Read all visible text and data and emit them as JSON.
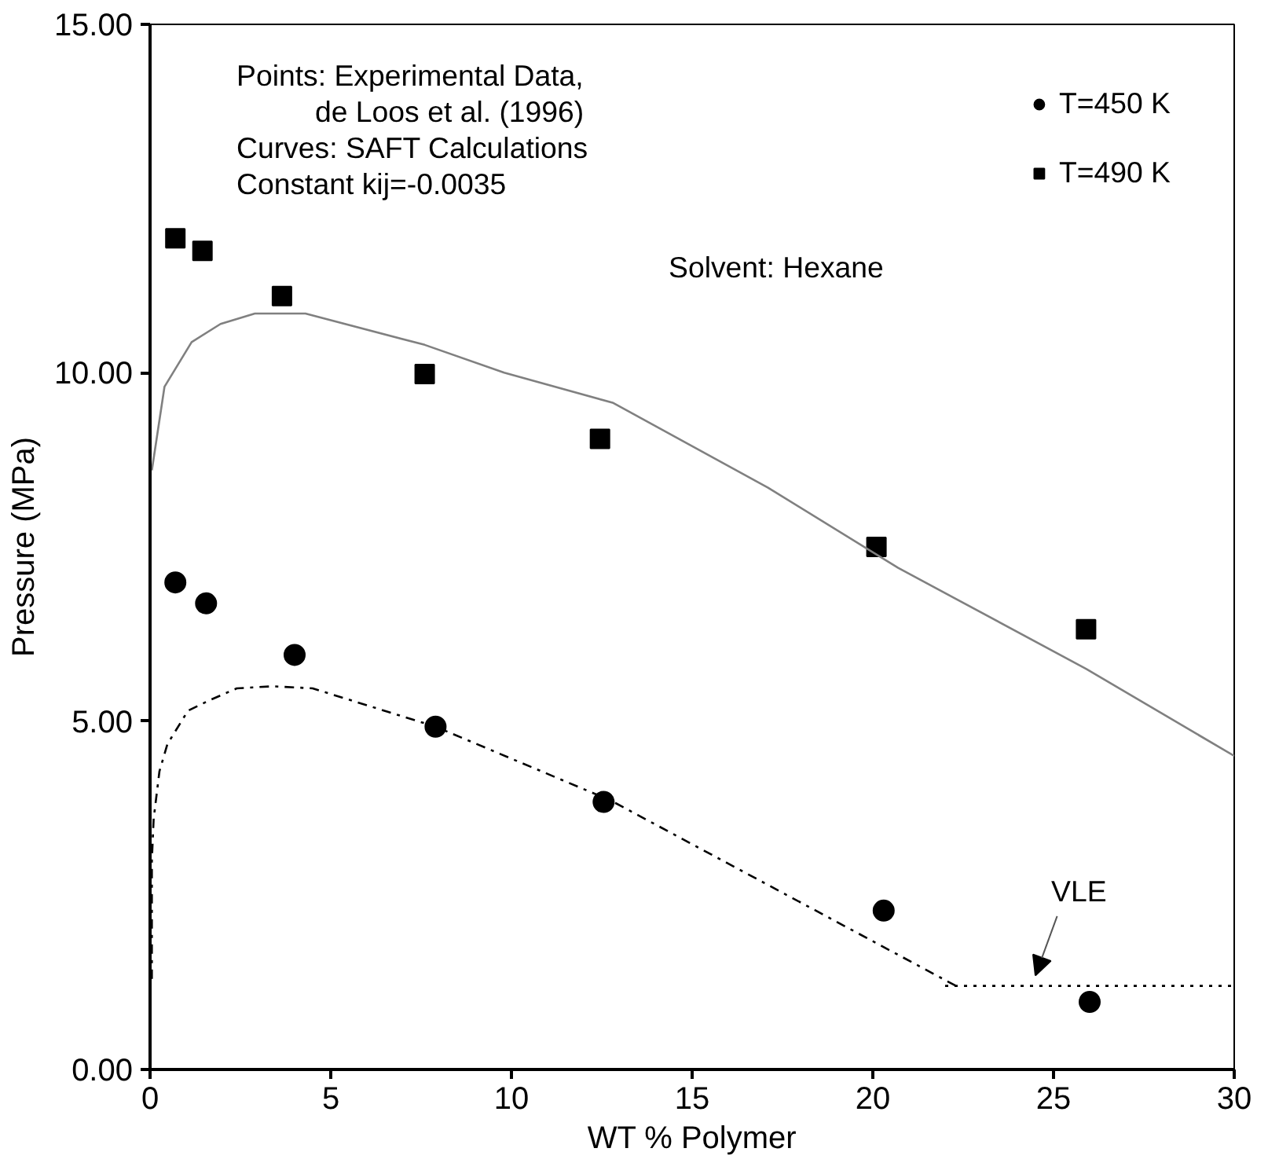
{
  "chart_data": {
    "type": "scatter",
    "xlabel": "WT % Polymer",
    "ylabel": "Pressure (MPa)",
    "xlim": [
      0,
      30
    ],
    "ylim": [
      0,
      15
    ],
    "xticks": [
      0,
      5,
      10,
      15,
      20,
      25,
      30
    ],
    "yticks": [
      {
        "value": 0,
        "label": "0.00"
      },
      {
        "value": 5,
        "label": "5.00"
      },
      {
        "value": 10,
        "label": "10.00"
      },
      {
        "value": 15,
        "label": "15.00"
      }
    ],
    "grid": false,
    "legend": "top right",
    "annotations": [
      "Points: Experimental Data,",
      "de Loos et al. (1996)",
      "Curves: SAFT Calculations",
      "Constant kij=-0.0035",
      "Solvent: Hexane",
      {
        "text": "VLE",
        "x": 24.5,
        "y": 1.2
      }
    ],
    "series": [
      {
        "name": "T=450 K",
        "marker": "circle",
        "color": "#000000",
        "x": [
          0.7,
          1.55,
          4.0,
          7.9,
          12.55,
          20.3,
          26.0
        ],
        "values": [
          6.99,
          6.69,
          5.95,
          4.92,
          3.84,
          2.28,
          0.97
        ]
      },
      {
        "name": "T=490 K",
        "marker": "square",
        "color": "#000000",
        "x": [
          0.7,
          1.45,
          3.65,
          7.6,
          12.45,
          20.1,
          25.9
        ],
        "values": [
          11.93,
          11.75,
          11.1,
          9.98,
          9.05,
          7.5,
          6.32
        ]
      },
      {
        "type": "line",
        "line_style": "solid",
        "color": "#808080",
        "x": [
          0.05,
          0.4,
          1.15,
          1.95,
          2.9,
          4.3,
          7.6,
          9.8,
          12.8,
          17.1,
          20.7,
          25.9,
          30
        ],
        "values": [
          8.6,
          9.8,
          10.44,
          10.7,
          10.85,
          10.85,
          10.4,
          10.0,
          9.57,
          8.35,
          7.2,
          5.75,
          4.5
        ]
      },
      {
        "type": "line",
        "line_style": "dashed",
        "color": "#000000",
        "x": [
          0.05,
          0.05,
          0.1,
          0.26,
          0.48,
          1.05,
          1.65,
          2.4,
          3.4,
          4.5,
          7.9,
          12.75,
          22.3
        ],
        "values": [
          1.3,
          3.0,
          3.6,
          4.28,
          4.67,
          5.15,
          5.3,
          5.47,
          5.5,
          5.47,
          4.92,
          3.86,
          1.2
        ]
      },
      {
        "type": "line",
        "line_style": "dotted",
        "color": "#000000",
        "x": [
          22.0,
          30
        ],
        "values": [
          1.2,
          1.2
        ]
      }
    ]
  }
}
